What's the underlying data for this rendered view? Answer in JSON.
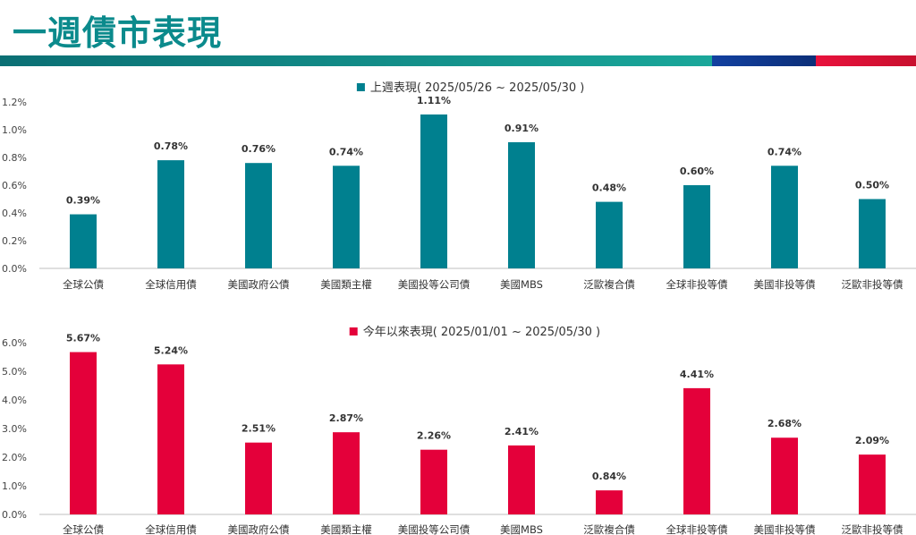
{
  "page": {
    "title": "一週債市表現"
  },
  "colors": {
    "title": "#0b8a8c",
    "weekly_bar": "#00808f",
    "ytd_bar": "#e4003a"
  },
  "chart_data": [
    {
      "type": "bar",
      "title": "上週表現( 2025/05/26 ~ 2025/05/30 )",
      "categories": [
        "全球公債",
        "全球信用債",
        "美國政府公債",
        "美國類主權",
        "美國投等公司債",
        "美國MBS",
        "泛歐複合債",
        "全球非投等債",
        "美國非投等債",
        "泛歐非投等債"
      ],
      "series": [
        {
          "values": [
            0.39,
            0.78,
            0.76,
            0.74,
            1.11,
            0.91,
            0.48,
            0.6,
            0.74,
            0.5
          ]
        }
      ],
      "data_labels": [
        "0.39%",
        "0.78%",
        "0.76%",
        "0.74%",
        "1.11%",
        "0.91%",
        "0.48%",
        "0.60%",
        "0.74%",
        "0.50%"
      ],
      "ylim": [
        0,
        1.2
      ],
      "yticks": [
        "0.0%",
        "0.2%",
        "0.4%",
        "0.6%",
        "0.8%",
        "1.0%",
        "1.2%"
      ],
      "legend": "top-center",
      "grid": false
    },
    {
      "type": "bar",
      "title": "今年以來表現( 2025/01/01 ~ 2025/05/30 )",
      "categories": [
        "全球公債",
        "全球信用債",
        "美國政府公債",
        "美國類主權",
        "美國投等公司債",
        "美國MBS",
        "泛歐複合債",
        "全球非投等債",
        "美國非投等債",
        "泛歐非投等債"
      ],
      "series": [
        {
          "values": [
            5.67,
            5.24,
            2.51,
            2.87,
            2.26,
            2.41,
            0.84,
            4.41,
            2.68,
            2.09
          ]
        }
      ],
      "data_labels": [
        "5.67%",
        "5.24%",
        "2.51%",
        "2.87%",
        "2.26%",
        "2.41%",
        "0.84%",
        "4.41%",
        "2.68%",
        "2.09%"
      ],
      "ylim": [
        0,
        6
      ],
      "yticks": [
        "0.0%",
        "1.0%",
        "2.0%",
        "3.0%",
        "4.0%",
        "5.0%",
        "6.0%"
      ],
      "legend": "top-center",
      "grid": false
    }
  ]
}
